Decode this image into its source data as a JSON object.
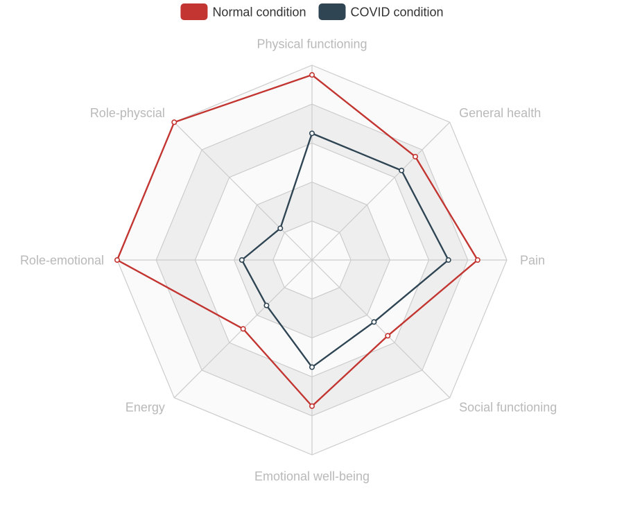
{
  "chart_data": {
    "type": "radar",
    "indicators": [
      "Physical functioning",
      "General health",
      "Pain",
      "Social functioning",
      "Emotional well-being",
      "Energy",
      "Role-emotional",
      "Role-physcial"
    ],
    "max": 100,
    "split_number": 5,
    "series": [
      {
        "name": "Normal condition",
        "color": "#c23531",
        "values": [
          95,
          75,
          85,
          55,
          75,
          50,
          100,
          100
        ]
      },
      {
        "name": "COVID condition",
        "color": "#2f4554",
        "values": [
          65,
          65,
          70,
          45,
          55,
          33,
          36,
          23
        ]
      }
    ],
    "split_area_colors": [
      "#fafafa",
      "#eeeeee"
    ],
    "grid_color": "#cccccc",
    "legend_position": "top-center"
  }
}
